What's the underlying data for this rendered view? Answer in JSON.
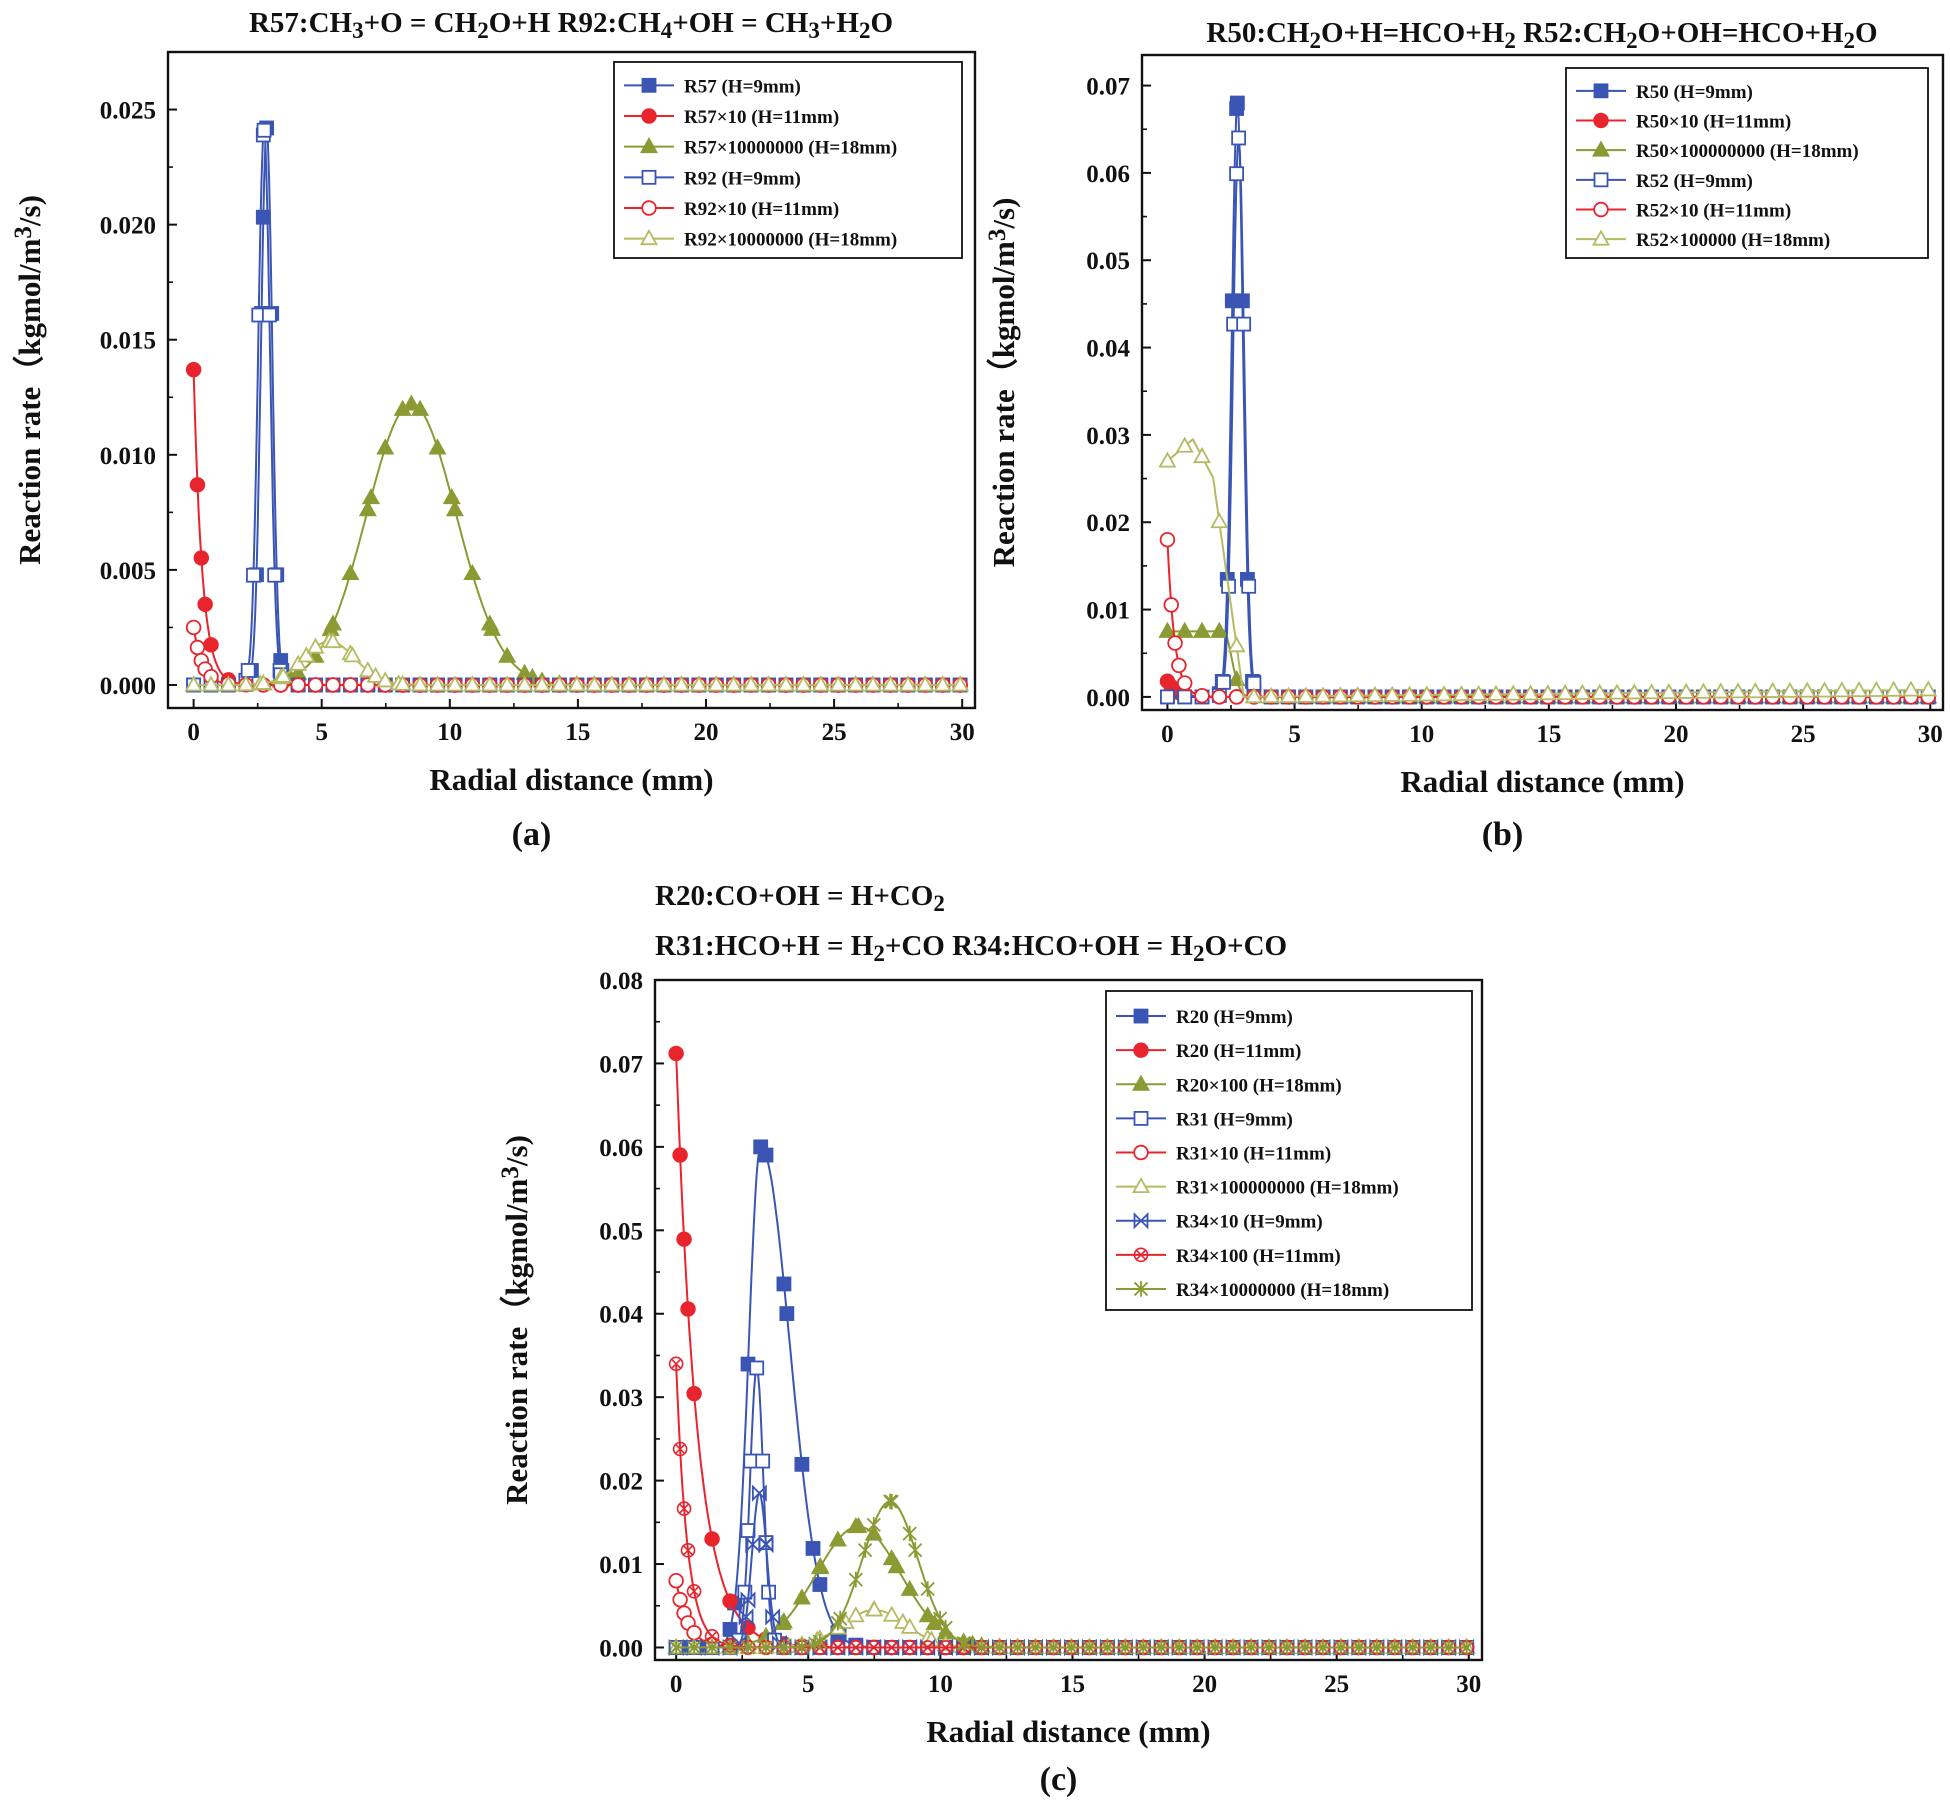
{
  "figure": {
    "colors": {
      "blue": "#3a55b4",
      "red": "#e8242d",
      "olive": "#8c9a34",
      "lightolive": "#b4bb62",
      "axis": "#111111"
    },
    "panels": [
      "a",
      "b",
      "c"
    ]
  },
  "chart_data": [
    {
      "id": "a",
      "type": "line",
      "panel_label": "(a)",
      "title_lines": [
        [
          {
            "text": "R57:CH"
          },
          {
            "text": "3",
            "sub": true
          },
          {
            "text": "+O = CH"
          },
          {
            "text": "2",
            "sub": true
          },
          {
            "text": "O+H      R92:CH"
          },
          {
            "text": "4",
            "sub": true
          },
          {
            "text": "+OH = CH"
          },
          {
            "text": "3",
            "sub": true
          },
          {
            "text": "+H"
          },
          {
            "text": "2",
            "sub": true
          },
          {
            "text": "O"
          }
        ]
      ],
      "xlabel": "Radial distance (mm)",
      "ylabel_parts": [
        {
          "text": "Reaction rate（kgmol/m"
        },
        {
          "text": "3",
          "sup": true
        },
        {
          "text": "/s)"
        }
      ],
      "xlim": [
        -1,
        30.5
      ],
      "ylim": [
        -0.001,
        0.0275
      ],
      "xticks": [
        0,
        5,
        10,
        15,
        20,
        25,
        30
      ],
      "xtick_labels": [
        "0",
        "5",
        "10",
        "15",
        "20",
        "25",
        "30"
      ],
      "yticks": [
        0,
        0.005,
        0.01,
        0.015,
        0.02,
        0.025
      ],
      "ytick_labels": [
        "0.000",
        "0.005",
        "0.010",
        "0.015",
        "0.020",
        "0.025"
      ],
      "series": [
        {
          "name": "R57 (H=9mm)",
          "color": "blue",
          "marker": "square",
          "filled": true,
          "type": "peak",
          "center": 2.85,
          "width": 0.22,
          "amp": 0.0242,
          "base": 0
        },
        {
          "name": "R57×10 (H=11mm)",
          "color": "red",
          "marker": "circle",
          "filled": true,
          "type": "decay",
          "amp": 0.0137,
          "tau": 0.33,
          "base": 0
        },
        {
          "name": "R57×10000000 (H=18mm)",
          "color": "olive",
          "marker": "triangle",
          "filled": true,
          "type": "peak",
          "center": 8.5,
          "width": 1.75,
          "amp": 0.0122,
          "base": 0
        },
        {
          "name": "R92 (H=9mm)",
          "color": "blue",
          "marker": "square",
          "filled": false,
          "type": "peak",
          "center": 2.75,
          "width": 0.23,
          "amp": 0.0241,
          "base": 0
        },
        {
          "name": "R92×10 (H=11mm)",
          "color": "red",
          "marker": "circle",
          "filled": false,
          "type": "decay",
          "amp": 0.0025,
          "tau": 0.35,
          "base": 0
        },
        {
          "name": "R92×10000000 (H=18mm)",
          "color": "lightolive",
          "marker": "triangle",
          "filled": false,
          "type": "peak",
          "center": 5.3,
          "width": 1.0,
          "amp": 0.0019,
          "base": 0
        }
      ]
    },
    {
      "id": "b",
      "type": "line",
      "panel_label": "(b)",
      "title_lines": [
        [
          {
            "text": "R50:CH"
          },
          {
            "text": "2",
            "sub": true
          },
          {
            "text": "O+H=HCO+H"
          },
          {
            "text": "2",
            "sub": true
          },
          {
            "text": "    R52:CH"
          },
          {
            "text": "2",
            "sub": true
          },
          {
            "text": "O+OH=HCO+H"
          },
          {
            "text": "2",
            "sub": true
          },
          {
            "text": "O"
          }
        ]
      ],
      "xlabel": "Radial distance (mm)",
      "ylabel_parts": [
        {
          "text": "Reaction rate（kgmol/m"
        },
        {
          "text": "3",
          "sup": true
        },
        {
          "text": "/s)"
        }
      ],
      "xlim": [
        -1,
        30.5
      ],
      "ylim": [
        -0.0015,
        0.0735
      ],
      "xticks": [
        0,
        5,
        10,
        15,
        20,
        25,
        30
      ],
      "xtick_labels": [
        "0",
        "5",
        "10",
        "15",
        "20",
        "25",
        "30"
      ],
      "yticks": [
        0,
        0.01,
        0.02,
        0.03,
        0.04,
        0.05,
        0.06,
        0.07
      ],
      "ytick_labels": [
        "0.00",
        "0.01",
        "0.02",
        "0.03",
        "0.04",
        "0.05",
        "0.06",
        "0.07"
      ],
      "series": [
        {
          "name": "R50 (H=9mm)",
          "color": "blue",
          "marker": "square",
          "filled": true,
          "type": "peak",
          "center": 2.75,
          "width": 0.22,
          "amp": 0.068,
          "base": 0
        },
        {
          "name": "R50×10 (H=11mm)",
          "color": "red",
          "marker": "circle",
          "filled": true,
          "type": "decay",
          "amp": 0.0018,
          "tau": 0.35,
          "base": 0
        },
        {
          "name": "R50×100000000 (H=18mm)",
          "color": "olive",
          "marker": "triangle",
          "filled": true,
          "type": "plateau",
          "level": 0.0075,
          "end": 2.2,
          "decay": 0.45,
          "base": 0
        },
        {
          "name": "R52 (H=9mm)",
          "color": "blue",
          "marker": "square",
          "filled": false,
          "type": "peak",
          "center": 2.8,
          "width": 0.22,
          "amp": 0.064,
          "base": 0
        },
        {
          "name": "R52×10 (H=11mm)",
          "color": "red",
          "marker": "circle",
          "filled": false,
          "type": "decay",
          "amp": 0.018,
          "tau": 0.28,
          "base": 0
        },
        {
          "name": "R52×100000 (H=18mm)",
          "color": "lightolive",
          "marker": "triangle",
          "filled": false,
          "type": "hump",
          "start": 0.027,
          "peak_x": 1.0,
          "peak": 0.0295,
          "drop_start": 1.8,
          "drop_end": 3.0,
          "base": 0,
          "tail": 0.0008
        }
      ]
    },
    {
      "id": "c",
      "type": "line",
      "panel_label": "(c)",
      "title_lines": [
        [
          {
            "text": "R20:CO+OH = H+CO"
          },
          {
            "text": "2",
            "sub": true
          }
        ],
        [
          {
            "text": "R31:HCO+H = H"
          },
          {
            "text": "2",
            "sub": true
          },
          {
            "text": "+CO          R34:HCO+OH = H"
          },
          {
            "text": "2",
            "sub": true
          },
          {
            "text": "O+CO"
          }
        ]
      ],
      "xlabel": "Radial distance (mm)",
      "ylabel_parts": [
        {
          "text": "Reaction rate（kgmol/m"
        },
        {
          "text": "3",
          "sup": true
        },
        {
          "text": "/s)"
        }
      ],
      "xlim": [
        -0.8,
        30.5
      ],
      "ylim": [
        -0.0015,
        0.08
      ],
      "xticks": [
        0,
        5,
        10,
        15,
        20,
        25,
        30
      ],
      "xtick_labels": [
        "0",
        "5",
        "10",
        "15",
        "20",
        "25",
        "30"
      ],
      "yticks": [
        0,
        0.01,
        0.02,
        0.03,
        0.04,
        0.05,
        0.06,
        0.07,
        0.08
      ],
      "ytick_labels": [
        "0.00",
        "0.01",
        "0.02",
        "0.03",
        "0.04",
        "0.05",
        "0.06",
        "0.07",
        "0.08"
      ],
      "series": [
        {
          "name": "R20 (H=9mm)",
          "color": "blue",
          "marker": "square",
          "filled": true,
          "type": "asympeak",
          "center": 3.2,
          "wl": 0.45,
          "wr": 1.1,
          "amp": 0.06,
          "base": 0
        },
        {
          "name": "R20 (H=11mm)",
          "color": "red",
          "marker": "circle",
          "filled": true,
          "type": "decay",
          "amp": 0.0712,
          "tau": 0.8,
          "base": 0
        },
        {
          "name": "R20×100 (H=18mm)",
          "color": "olive",
          "marker": "triangle",
          "filled": true,
          "type": "peak",
          "center": 6.9,
          "width": 1.6,
          "amp": 0.0145,
          "base": 0
        },
        {
          "name": "R31 (H=9mm)",
          "color": "blue",
          "marker": "square",
          "filled": false,
          "type": "peak",
          "center": 3.05,
          "width": 0.25,
          "amp": 0.0335,
          "base": 0
        },
        {
          "name": "R31×10 (H=11mm)",
          "color": "red",
          "marker": "circle",
          "filled": false,
          "type": "decay",
          "amp": 0.008,
          "tau": 0.45,
          "base": 0
        },
        {
          "name": "R31×100000000 (H=18mm)",
          "color": "lightolive",
          "marker": "triangle",
          "filled": false,
          "type": "peak",
          "center": 7.5,
          "width": 1.2,
          "amp": 0.0045,
          "base": 0
        },
        {
          "name": "R34×10 (H=9mm)",
          "color": "blue",
          "marker": "bowtie",
          "filled": false,
          "type": "peak",
          "center": 3.15,
          "width": 0.28,
          "amp": 0.0185,
          "base": 0
        },
        {
          "name": "R34×100 (H=11mm)",
          "color": "red",
          "marker": "circlex",
          "filled": false,
          "type": "decay",
          "amp": 0.034,
          "tau": 0.42,
          "base": 0
        },
        {
          "name": "R34×10000000 (H=18mm)",
          "color": "olive",
          "marker": "star",
          "filled": false,
          "type": "peak",
          "center": 8.1,
          "width": 1.05,
          "amp": 0.0175,
          "base": 0
        }
      ]
    }
  ]
}
